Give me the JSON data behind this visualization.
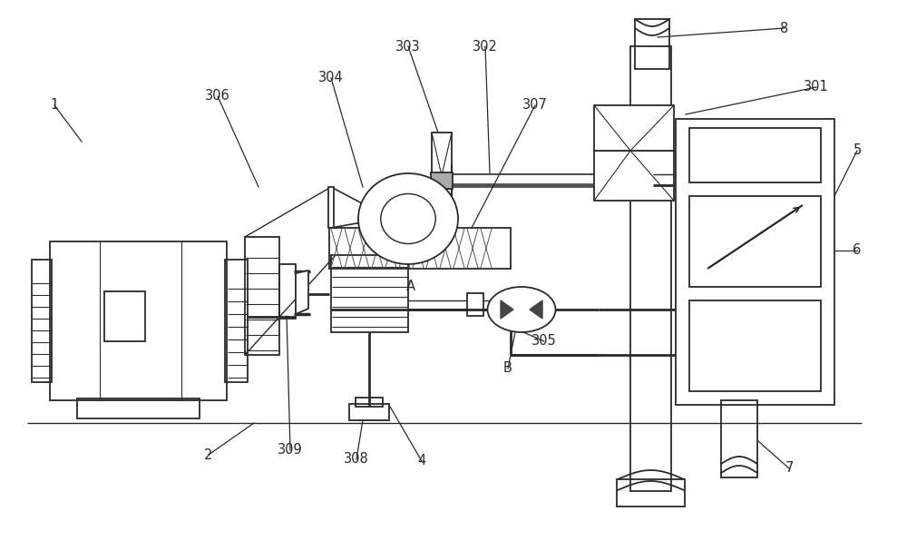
{
  "bg_color": "#ffffff",
  "lc": "#2a2a2a",
  "lw": 1.3,
  "figsize": [
    10.0,
    5.96
  ],
  "dpi": 100
}
